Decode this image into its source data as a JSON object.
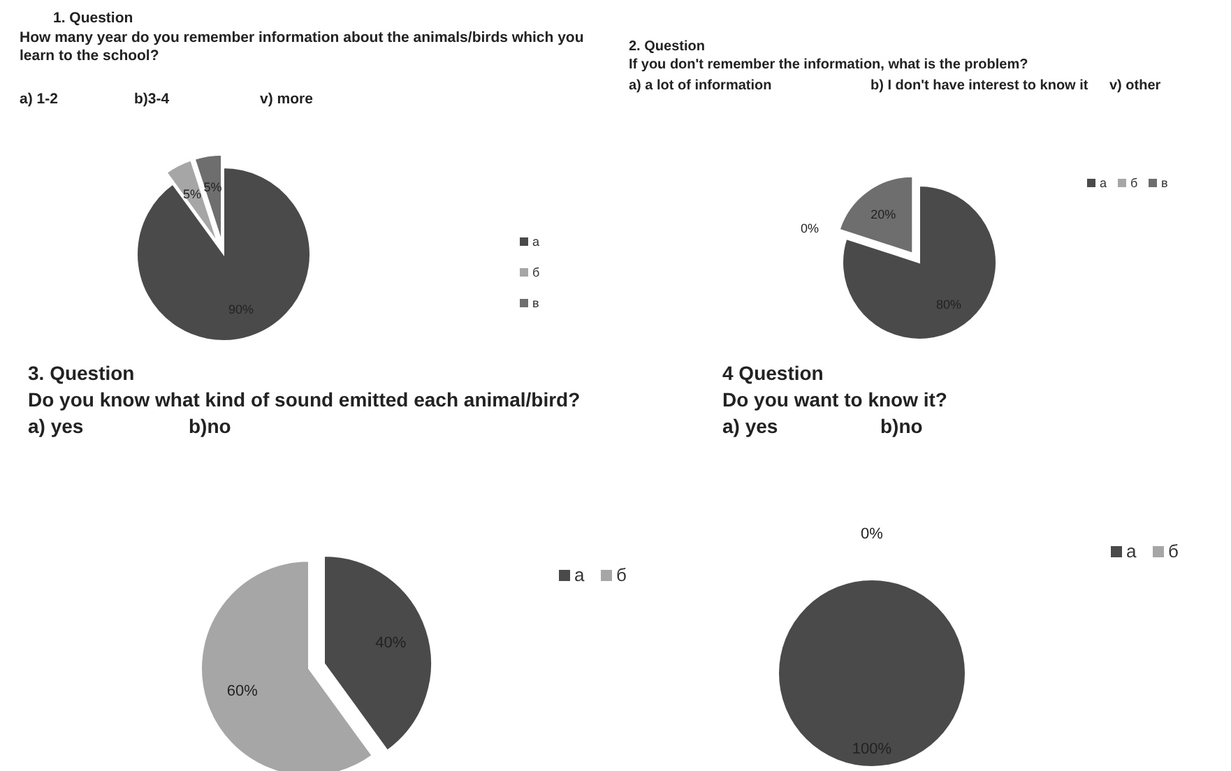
{
  "chart_data": [
    {
      "type": "pie",
      "title": "1. Question",
      "subtitle": "How many year do you remember information about the animals/birds which you learn to the school?",
      "annotations": [
        "a) 1-2",
        "b)3-4",
        "v) more"
      ],
      "categories": [
        "а",
        "б",
        "в"
      ],
      "values": [
        90,
        5,
        5
      ],
      "colors": [
        "#4a4a4a",
        "#a6a6a6",
        "#6e6e6e"
      ],
      "value_labels": [
        "90%",
        "5%",
        "5%"
      ],
      "legend": "right"
    },
    {
      "type": "pie",
      "title": "2. Question",
      "subtitle": "If you don't remember the information, what is the problem?",
      "annotations": [
        "a) a lot of information",
        "b) I don't have interest to know it",
        "v) other"
      ],
      "categories": [
        "а",
        "б",
        "в"
      ],
      "values": [
        80,
        0,
        20
      ],
      "colors": [
        "#4a4a4a",
        "#a6a6a6",
        "#6e6e6e"
      ],
      "value_labels": [
        "80%",
        "0%",
        "20%"
      ],
      "legend": "top right"
    },
    {
      "type": "pie",
      "title": "3. Question",
      "subtitle": "Do you know what kind of sound emitted each animal/bird?",
      "annotations": [
        "a) yes",
        "b)no"
      ],
      "categories": [
        "а",
        "б"
      ],
      "values": [
        40,
        60
      ],
      "colors": [
        "#4a4a4a",
        "#a6a6a6"
      ],
      "value_labels": [
        "40%",
        "60%"
      ],
      "legend": "top right"
    },
    {
      "type": "pie",
      "title": "4 Question",
      "subtitle": "Do you want to know it?",
      "annotations": [
        "a) yes",
        "b)no"
      ],
      "categories": [
        "а",
        "б"
      ],
      "values": [
        100,
        0
      ],
      "colors": [
        "#4a4a4a",
        "#a6a6a6"
      ],
      "value_labels": [
        "100%",
        "0%"
      ],
      "legend": "top right"
    }
  ]
}
